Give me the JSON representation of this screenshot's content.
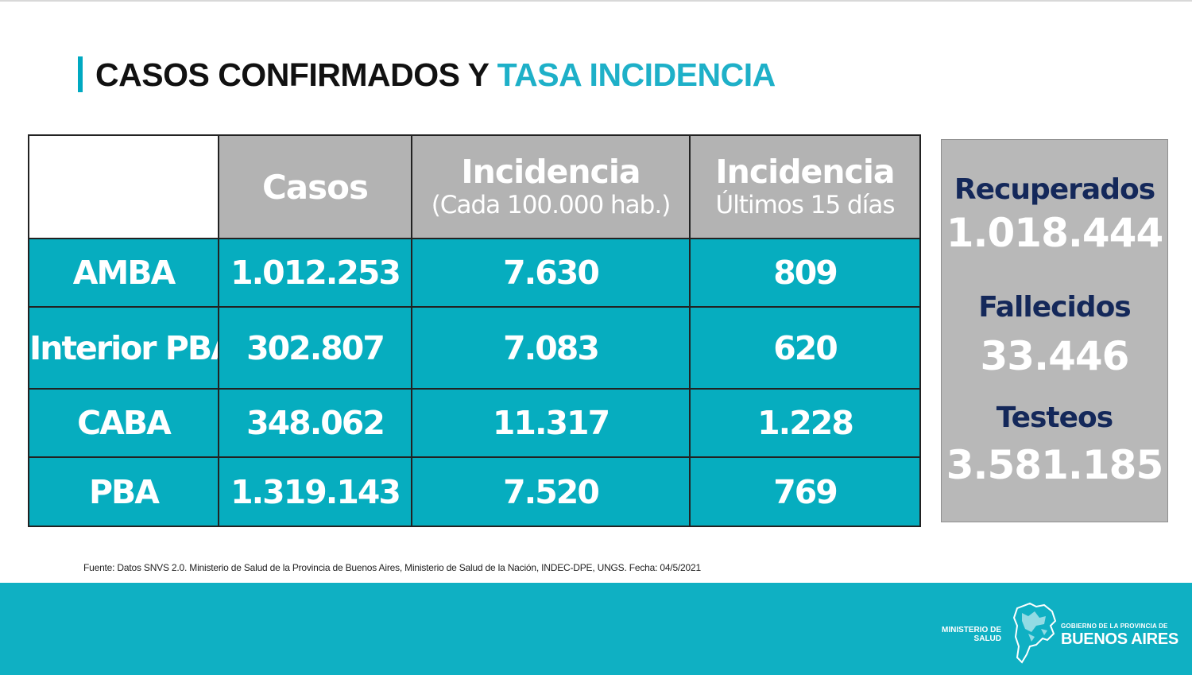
{
  "title": {
    "part1": "CASOS CONFIRMADOS Y",
    "part2": "TASA INCIDENCIA"
  },
  "table": {
    "headers": {
      "casos": "Casos",
      "incidencia": {
        "main": "Incidencia",
        "sub": "(Cada 100.000 hab.)"
      },
      "incidencia_15": {
        "main": "Incidencia",
        "sub": "Últimos 15 días"
      }
    },
    "rows": [
      {
        "label": "AMBA",
        "casos": "1.012.253",
        "incidencia": "7.630",
        "incidencia_15": "809"
      },
      {
        "label": "Interior PBA",
        "casos": "302.807",
        "incidencia": "7.083",
        "incidencia_15": "620"
      },
      {
        "label": "CABA",
        "casos": "348.062",
        "incidencia": "11.317",
        "incidencia_15": "1.228"
      },
      {
        "label": "PBA",
        "casos": "1.319.143",
        "incidencia": "7.520",
        "incidencia_15": "769"
      }
    ]
  },
  "side": {
    "recuperados_label": "Recuperados",
    "recuperados_value": "1.018.444",
    "fallecidos_label": "Fallecidos",
    "fallecidos_value": "33.446",
    "testeos_label": "Testeos",
    "testeos_value": "3.581.185"
  },
  "source": "Fuente: Datos SNVS 2.0. Ministerio de Salud de la Provincia de Buenos Aires, Ministerio de Salud de la Nación, INDEC-DPE, UNGS. Fecha: 04/5/2021",
  "footer": {
    "ministry_line1": "MINISTERIO DE",
    "ministry_line2": "SALUD",
    "gov_line1": "GOBIERNO DE LA PROVINCIA DE",
    "gov_line2": "BUENOS AIRES",
    "map_icon": "buenos-aires-province-map"
  },
  "colors": {
    "accent": "#00a9c1",
    "table_teal": "#06adbf",
    "header_gray": "#b3b3b3",
    "side_gray": "#b8b8b8",
    "navy": "#14285a"
  }
}
